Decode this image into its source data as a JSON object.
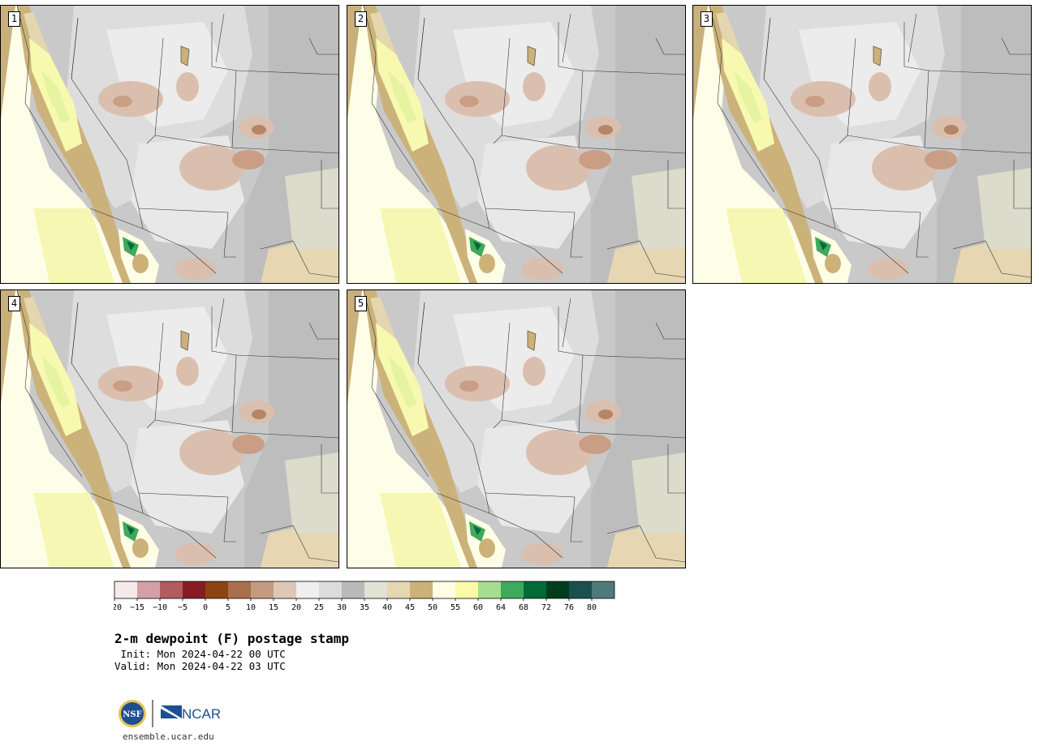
{
  "members": [
    {
      "label": "1"
    },
    {
      "label": "2"
    },
    {
      "label": "3"
    },
    {
      "label": "4"
    },
    {
      "label": "5"
    }
  ],
  "colorbar": {
    "colors": [
      "#f7e9ea",
      "#d3a1a5",
      "#b05c61",
      "#861d25",
      "#8b4513",
      "#a9704e",
      "#c49a80",
      "#dec7b6",
      "#efefef",
      "#dcdcdc",
      "#b9b9b9",
      "#e2e2d4",
      "#e5d7b0",
      "#ccb178",
      "#fefee6",
      "#fafaa8",
      "#a7dd8f",
      "#3fa95c",
      "#016a36",
      "#003d1c",
      "#1a5050",
      "#4e7a7a"
    ],
    "tick_labels": [
      "−20",
      "−15",
      "−10",
      "−5",
      "0",
      "5",
      "10",
      "15",
      "20",
      "25",
      "30",
      "35",
      "40",
      "45",
      "50",
      "55",
      "60",
      "64",
      "68",
      "72",
      "76",
      "80"
    ]
  },
  "title": "2-m dewpoint (F) postage stamp",
  "init": " Init: Mon 2024-04-22 00 UTC",
  "valid": "Valid: Mon 2024-04-22 03 UTC",
  "logos": {
    "nsf": "NSF",
    "ncar": "NCAR"
  },
  "site_url": "ensemble.ucar.edu"
}
